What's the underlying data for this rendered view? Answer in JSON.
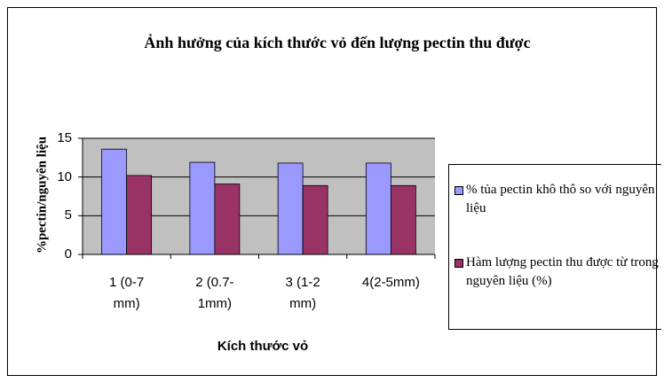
{
  "chart_data": {
    "type": "bar",
    "title": "Ảnh hưởng của kích thước vỏ đến lượng pectin thu được",
    "x_label": "Kích thước vỏ",
    "y_label": "%pectin/nguyên liệu",
    "categories": [
      "1 (0-7 mm)",
      "2 (0.7-1mm)",
      "3 (1-2 mm)",
      "4(2-5mm)"
    ],
    "series": [
      {
        "name": "% tủa pectin khô thô so với nguyên liệu",
        "color": "#9999ff",
        "values": [
          13.6,
          11.9,
          11.8,
          11.8
        ]
      },
      {
        "name": "Hàm lượng pectin thu được từ trong nguyên liệu (%)",
        "color": "#993366",
        "values": [
          10.2,
          9.1,
          8.9,
          8.9
        ]
      }
    ],
    "ylim": [
      0,
      15
    ],
    "yticks": [
      0,
      5,
      10,
      15
    ],
    "grid": true,
    "legend": "right"
  }
}
